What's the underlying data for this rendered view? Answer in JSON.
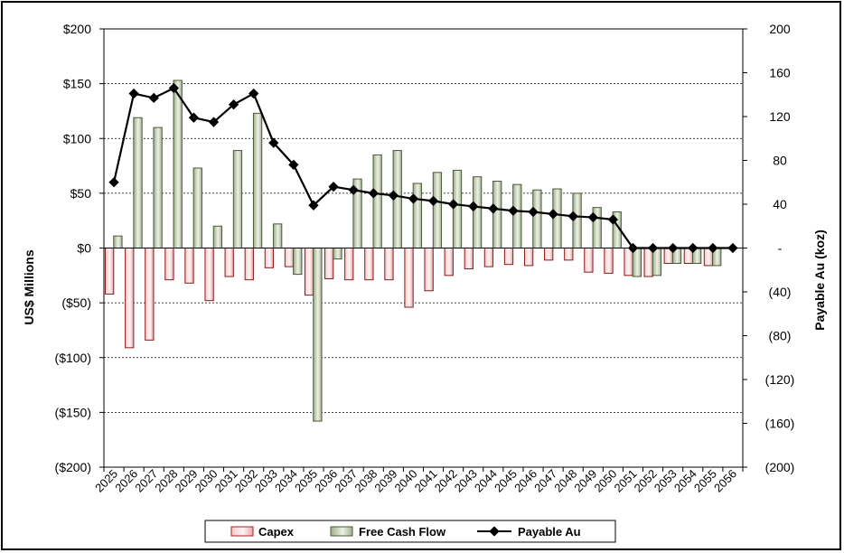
{
  "chart_data": {
    "type": "bar+line",
    "categories": [
      "2025",
      "2026",
      "2027",
      "2028",
      "2029",
      "2030",
      "2031",
      "2032",
      "2033",
      "2034",
      "2035",
      "2036",
      "2037",
      "2038",
      "2039",
      "2040",
      "2041",
      "2042",
      "2043",
      "2044",
      "2045",
      "2046",
      "2047",
      "2048",
      "2049",
      "2050",
      "2051",
      "2052",
      "2053",
      "2054",
      "2055",
      "2056"
    ],
    "left_axis": {
      "label": "US$ Millions",
      "ylim": [
        -200,
        200
      ],
      "ticks": [
        200,
        150,
        100,
        50,
        0,
        -50,
        -100,
        -150,
        -200
      ],
      "tick_labels": [
        "$200",
        "$150",
        "$100",
        "$50",
        "$0",
        "($50)",
        "($100)",
        "($150)",
        "($200)"
      ]
    },
    "right_axis": {
      "label": "Payable Au (koz)",
      "ylim": [
        -200,
        200
      ],
      "ticks": [
        200,
        160,
        120,
        80,
        40,
        0,
        -40,
        -80,
        -120,
        -160,
        -200
      ],
      "tick_labels": [
        "200",
        "160",
        "120",
        "80",
        "40",
        "-",
        "(40)",
        "(80)",
        "(120)",
        "(160)",
        "(200)"
      ]
    },
    "grid": "horizontal-dashed",
    "legend_position": "bottom",
    "series": [
      {
        "name": "Capex",
        "type": "bar",
        "axis": "left",
        "color": "#f2b8b8",
        "values": [
          -42,
          -91,
          -84,
          -29,
          -32,
          -48,
          -26,
          -29,
          -18,
          -17,
          -43,
          -28,
          -29,
          -29,
          -29,
          -54,
          -39,
          -25,
          -19,
          -17,
          -15,
          -16,
          -11,
          -11,
          -22,
          -23,
          -25,
          -26,
          -14,
          -14,
          -16,
          0
        ]
      },
      {
        "name": "Free Cash Flow",
        "type": "bar",
        "axis": "left",
        "color": "#b8c4a4",
        "values": [
          11,
          119,
          110,
          153,
          73,
          20,
          89,
          123,
          22,
          -24,
          -158,
          -10,
          63,
          85,
          89,
          59,
          69,
          71,
          65,
          61,
          58,
          53,
          54,
          50,
          37,
          33,
          -26,
          -25,
          -14,
          -14,
          -16,
          0
        ]
      },
      {
        "name": "Payable Au",
        "type": "line",
        "axis": "right",
        "color": "#000000",
        "values": [
          60,
          141,
          137,
          146,
          119,
          115,
          131,
          141,
          96,
          76,
          39,
          56,
          53,
          50,
          48,
          45,
          43,
          40,
          38,
          36,
          34,
          33,
          31,
          29,
          28,
          26,
          0,
          0,
          0,
          0,
          0,
          0
        ]
      }
    ]
  }
}
